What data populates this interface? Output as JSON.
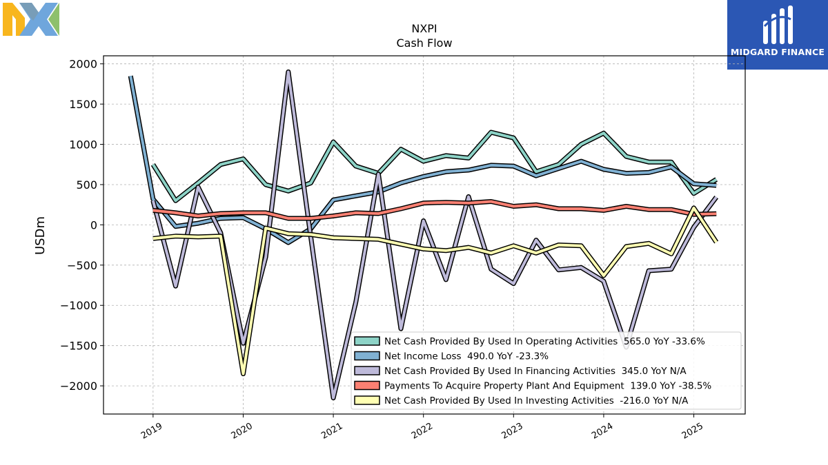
{
  "brand": {
    "company_logo": "NXP",
    "publisher_logo": "MIDGARD FINANCE"
  },
  "colors": {
    "operating": "#8dd3c7",
    "net_income": "#80b1d3",
    "financing": "#bebada",
    "capex": "#fb8072",
    "investing": "#ffffb3"
  },
  "chart_data": {
    "type": "line",
    "title": "NXPI",
    "subtitle": "Cash Flow",
    "ylabel": "USDm",
    "xlabel": "",
    "ylim": [
      -2350,
      2100
    ],
    "xlim": [
      2018.45,
      2025.57
    ],
    "yticks": [
      2000,
      1500,
      1000,
      500,
      0,
      -500,
      -1000,
      -1500,
      -2000
    ],
    "ytick_labels": [
      "2000",
      "1500",
      "1000",
      "500",
      "0",
      "−500",
      "−1000",
      "−1500",
      "−2000"
    ],
    "xticks": [
      2019,
      2020,
      2021,
      2022,
      2023,
      2024,
      2025
    ],
    "xtick_labels": [
      "2019",
      "2020",
      "2021",
      "2022",
      "2023",
      "2024",
      "2025"
    ],
    "grid": true,
    "legend_position": "lower-right",
    "series": [
      {
        "name": "Net Cash Provided By Used In Operating Activities",
        "legend": "Net Cash Provided By Used In Operating Activities  565.0 YoY -33.6%",
        "color": "#8dd3c7",
        "points": [
          [
            2019.0,
            750
          ],
          [
            2019.25,
            300
          ],
          [
            2019.5,
            520
          ],
          [
            2019.75,
            750
          ],
          [
            2020.0,
            820
          ],
          [
            2020.25,
            500
          ],
          [
            2020.5,
            420
          ],
          [
            2020.75,
            520
          ],
          [
            2021.0,
            1030
          ],
          [
            2021.25,
            730
          ],
          [
            2021.5,
            640
          ],
          [
            2021.75,
            940
          ],
          [
            2022.0,
            790
          ],
          [
            2022.25,
            860
          ],
          [
            2022.5,
            830
          ],
          [
            2022.75,
            1150
          ],
          [
            2023.0,
            1080
          ],
          [
            2023.25,
            660
          ],
          [
            2023.5,
            750
          ],
          [
            2023.75,
            1000
          ],
          [
            2024.0,
            1140
          ],
          [
            2024.25,
            850
          ],
          [
            2024.5,
            780
          ],
          [
            2024.75,
            780
          ],
          [
            2025.0,
            390
          ],
          [
            2025.25,
            565
          ]
        ]
      },
      {
        "name": "Net Income Loss",
        "legend": "Net Income Loss  490.0 YoY -23.3%",
        "color": "#80b1d3",
        "points": [
          [
            2018.75,
            1850
          ],
          [
            2019.0,
            320
          ],
          [
            2019.25,
            -20
          ],
          [
            2019.5,
            20
          ],
          [
            2019.75,
            80
          ],
          [
            2020.0,
            90
          ],
          [
            2020.25,
            -50
          ],
          [
            2020.5,
            -220
          ],
          [
            2020.75,
            -50
          ],
          [
            2021.0,
            310
          ],
          [
            2021.25,
            360
          ],
          [
            2021.5,
            410
          ],
          [
            2021.75,
            520
          ],
          [
            2022.0,
            600
          ],
          [
            2022.25,
            660
          ],
          [
            2022.5,
            680
          ],
          [
            2022.75,
            740
          ],
          [
            2023.0,
            730
          ],
          [
            2023.25,
            610
          ],
          [
            2023.5,
            700
          ],
          [
            2023.75,
            790
          ],
          [
            2024.0,
            690
          ],
          [
            2024.25,
            640
          ],
          [
            2024.5,
            650
          ],
          [
            2024.75,
            720
          ],
          [
            2025.0,
            510
          ],
          [
            2025.25,
            490
          ]
        ]
      },
      {
        "name": "Net Cash Provided By Used In Financing Activities",
        "legend": "Net Cash Provided By Used In Financing Activities  345.0 YoY N/A",
        "color": "#bebada",
        "points": [
          [
            2019.0,
            300
          ],
          [
            2019.25,
            -760
          ],
          [
            2019.5,
            470
          ],
          [
            2019.75,
            -100
          ],
          [
            2020.0,
            -1470
          ],
          [
            2020.25,
            -400
          ],
          [
            2020.5,
            1900
          ],
          [
            2020.75,
            -150
          ],
          [
            2021.0,
            -2150
          ],
          [
            2021.25,
            -960
          ],
          [
            2021.5,
            630
          ],
          [
            2021.75,
            -1290
          ],
          [
            2022.0,
            50
          ],
          [
            2022.25,
            -680
          ],
          [
            2022.5,
            350
          ],
          [
            2022.75,
            -550
          ],
          [
            2023.0,
            -730
          ],
          [
            2023.25,
            -190
          ],
          [
            2023.5,
            -560
          ],
          [
            2023.75,
            -530
          ],
          [
            2024.0,
            -700
          ],
          [
            2024.25,
            -1520
          ],
          [
            2024.5,
            -570
          ],
          [
            2024.75,
            -550
          ],
          [
            2025.0,
            -30
          ],
          [
            2025.25,
            345
          ]
        ]
      },
      {
        "name": "Payments To Acquire Property Plant And Equipment",
        "legend": "Payments To Acquire Property Plant And Equipment  139.0 YoY -38.5%",
        "color": "#fb8072",
        "points": [
          [
            2019.0,
            180
          ],
          [
            2019.25,
            150
          ],
          [
            2019.5,
            110
          ],
          [
            2019.75,
            140
          ],
          [
            2020.0,
            150
          ],
          [
            2020.25,
            150
          ],
          [
            2020.5,
            80
          ],
          [
            2020.75,
            80
          ],
          [
            2021.0,
            110
          ],
          [
            2021.25,
            150
          ],
          [
            2021.5,
            140
          ],
          [
            2021.75,
            200
          ],
          [
            2022.0,
            270
          ],
          [
            2022.25,
            280
          ],
          [
            2022.5,
            270
          ],
          [
            2022.75,
            290
          ],
          [
            2023.0,
            230
          ],
          [
            2023.25,
            250
          ],
          [
            2023.5,
            200
          ],
          [
            2023.75,
            200
          ],
          [
            2024.0,
            180
          ],
          [
            2024.25,
            230
          ],
          [
            2024.5,
            190
          ],
          [
            2024.75,
            190
          ],
          [
            2025.0,
            130
          ],
          [
            2025.25,
            139
          ]
        ]
      },
      {
        "name": "Net Cash Provided By Used In Investing Activities",
        "legend": "Net Cash Provided By Used In Investing Activities  -216.0 YoY N/A",
        "color": "#ffffb3",
        "points": [
          [
            2019.0,
            -170
          ],
          [
            2019.25,
            -140
          ],
          [
            2019.5,
            -150
          ],
          [
            2019.75,
            -140
          ],
          [
            2020.0,
            -1850
          ],
          [
            2020.25,
            -40
          ],
          [
            2020.5,
            -110
          ],
          [
            2020.75,
            -120
          ],
          [
            2021.0,
            -160
          ],
          [
            2021.25,
            -170
          ],
          [
            2021.5,
            -180
          ],
          [
            2021.75,
            -240
          ],
          [
            2022.0,
            -300
          ],
          [
            2022.25,
            -320
          ],
          [
            2022.5,
            -280
          ],
          [
            2022.75,
            -350
          ],
          [
            2023.0,
            -260
          ],
          [
            2023.25,
            -350
          ],
          [
            2023.5,
            -250
          ],
          [
            2023.75,
            -260
          ],
          [
            2024.0,
            -630
          ],
          [
            2024.25,
            -270
          ],
          [
            2024.5,
            -230
          ],
          [
            2024.75,
            -360
          ],
          [
            2025.0,
            210
          ],
          [
            2025.25,
            -216
          ]
        ]
      }
    ]
  }
}
